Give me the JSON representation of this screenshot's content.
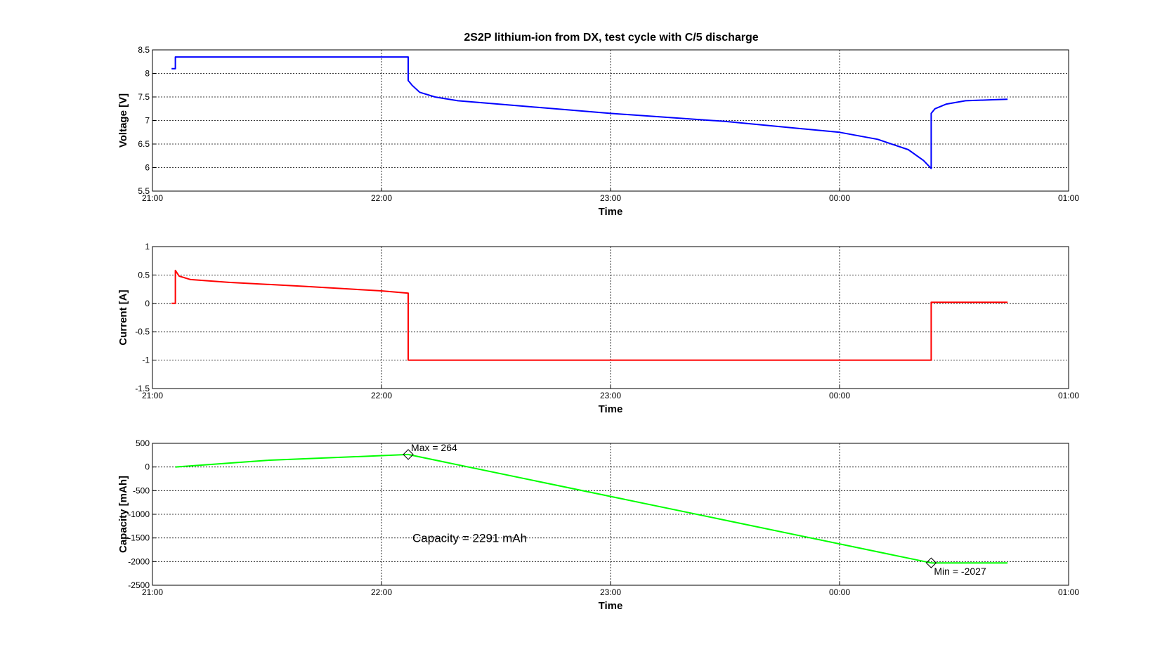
{
  "chart_data": [
    {
      "type": "line",
      "title": "2S2P lithium-ion from DX, test cycle with C/5 discharge",
      "xlabel": "Time",
      "ylabel": "Voltage [V]",
      "xlim": [
        "21:00",
        "01:00"
      ],
      "ylim": [
        5.5,
        8.5
      ],
      "x_tick_labels": [
        "21:00",
        "22:00",
        "23:00",
        "00:00",
        "01:00"
      ],
      "y_tick_labels": [
        "5.5",
        "6",
        "6.5",
        "7",
        "7.5",
        "8",
        "8.5"
      ],
      "grid": true,
      "series": [
        {
          "color": "#0000ff",
          "x": [
            "21:05",
            "21:06",
            "21:06",
            "22:07",
            "22:07",
            "22:08",
            "22:10",
            "22:14",
            "22:20",
            "22:35",
            "23:00",
            "23:30",
            "00:00",
            "00:10",
            "00:18",
            "00:22",
            "00:24",
            "00:24",
            "00:25",
            "00:28",
            "00:33",
            "00:40",
            "00:44"
          ],
          "y": [
            8.1,
            8.1,
            8.35,
            8.35,
            7.85,
            7.75,
            7.6,
            7.5,
            7.42,
            7.32,
            7.15,
            6.98,
            6.75,
            6.6,
            6.38,
            6.15,
            5.98,
            7.15,
            7.25,
            7.35,
            7.42,
            7.44,
            7.45
          ]
        }
      ]
    },
    {
      "type": "line",
      "xlabel": "Time",
      "ylabel": "Current [A]",
      "xlim": [
        "21:00",
        "01:00"
      ],
      "ylim": [
        -1.5,
        1
      ],
      "x_tick_labels": [
        "21:00",
        "22:00",
        "23:00",
        "00:00",
        "01:00"
      ],
      "y_tick_labels": [
        "-1.5",
        "-1",
        "-0.5",
        "0",
        "0.5",
        "1"
      ],
      "grid": true,
      "series": [
        {
          "color": "#ff0000",
          "x": [
            "21:05",
            "21:06",
            "21:06",
            "21:07",
            "21:10",
            "21:20",
            "21:40",
            "22:00",
            "22:07",
            "22:07",
            "00:24",
            "00:24",
            "00:44"
          ],
          "y": [
            0,
            0,
            0.58,
            0.48,
            0.42,
            0.37,
            0.3,
            0.22,
            0.18,
            -1,
            -1,
            0.02,
            0.02
          ]
        }
      ]
    },
    {
      "type": "line",
      "xlabel": "Time",
      "ylabel": "Capacity [mAh]",
      "xlim": [
        "21:00",
        "01:00"
      ],
      "ylim": [
        -2500,
        500
      ],
      "x_tick_labels": [
        "21:00",
        "22:00",
        "23:00",
        "00:00",
        "01:00"
      ],
      "y_tick_labels": [
        "-2500",
        "-2000",
        "-1500",
        "-1000",
        "-500",
        "0",
        "500"
      ],
      "grid": true,
      "annotations": {
        "max_label": "Max = 264",
        "min_label": "Min = -2027",
        "capacity_label": "Capacity = 2291 mAh"
      },
      "markers": [
        {
          "x": "22:07",
          "y": 264
        },
        {
          "x": "00:24",
          "y": -2027
        }
      ],
      "series": [
        {
          "color": "#00ff00",
          "x": [
            "21:06",
            "21:30",
            "22:00",
            "22:07",
            "00:24",
            "00:44"
          ],
          "y": [
            0,
            140,
            240,
            264,
            -2027,
            -2027
          ]
        }
      ]
    }
  ]
}
